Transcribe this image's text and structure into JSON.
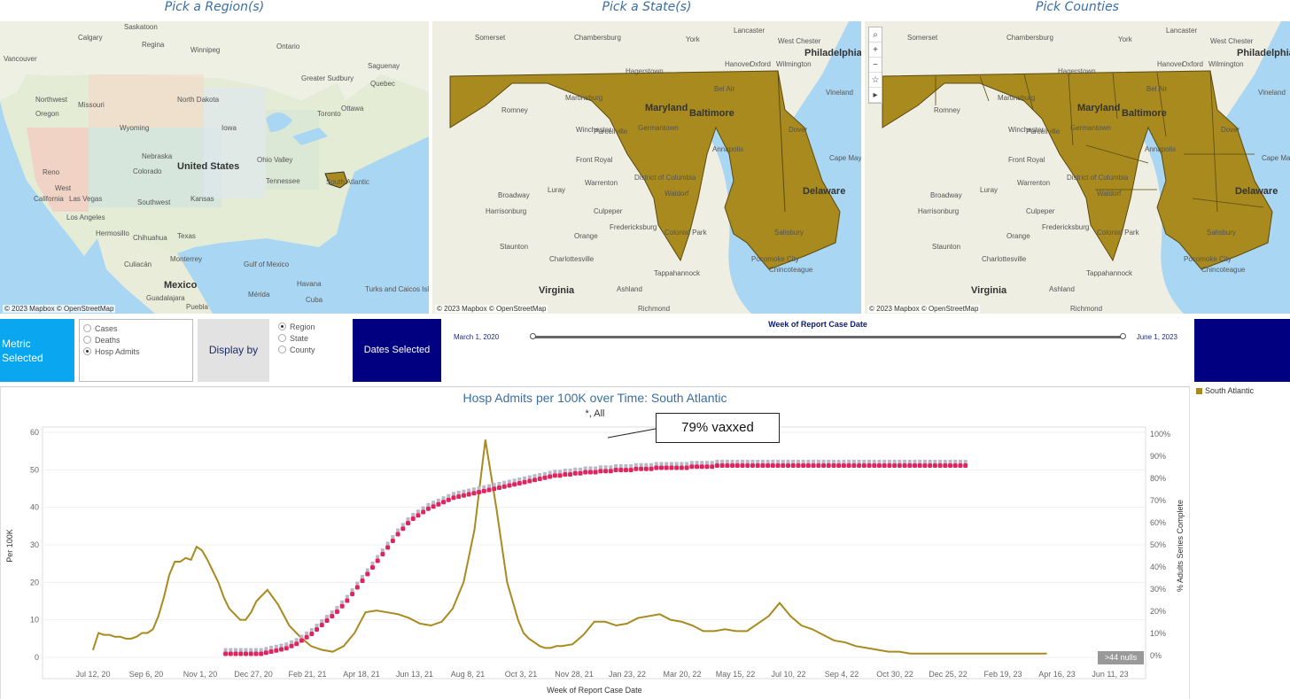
{
  "maps": {
    "region_title": "Pick a Region(s)",
    "state_title": "Pick a State(s)",
    "county_title": "Pick Counties",
    "credit": "© 2023 Mapbox © OpenStreetMap",
    "region_labels": [
      "Saskatoon",
      "Calgary",
      "Regina",
      "Vancouver",
      "Ontario",
      "Saguenay",
      "Winnipeg",
      "Greater Sudbury",
      "Quebec",
      "Toronto",
      "Ottawa",
      "Northwest",
      "North Dakota",
      "Missouri",
      "Oregon",
      "Wyoming",
      "Iowa",
      "United States",
      "Nebraska",
      "Kansas",
      "Ohio Valley",
      "Tennessee",
      "South Atlantic",
      "Reno",
      "West",
      "California",
      "Las Vegas",
      "Los Angeles",
      "Southwest",
      "Colorado",
      "Texas",
      "Hermosillo",
      "Chihuahua",
      "Monterrey",
      "Culiacán",
      "Mexico",
      "Guadalajara",
      "Puebla",
      "Mérida",
      "Gulf of Mexico",
      "Havana",
      "Cuba",
      "Turks and Caicos Islands"
    ],
    "state_labels": [
      "Somerset",
      "Chambersburg",
      "York",
      "Lancaster",
      "West Chester",
      "Philadelphia",
      "Hagerstown",
      "Hanover",
      "Oxford",
      "Wilmington",
      "Romney",
      "Martinsburg",
      "Maryland",
      "Bel Air",
      "Baltimore",
      "Vineland",
      "Winchester",
      "Purcellville",
      "Germantown",
      "Dover",
      "Front Royal",
      "Annapolis",
      "Cape May",
      "Warrenton",
      "District of Columbia",
      "Broadway",
      "Luray",
      "Waldorf",
      "Delaware",
      "Harrisonburg",
      "Culpeper",
      "Salisbury",
      "Fredericksburg",
      "Staunton",
      "Orange",
      "Colonial Park",
      "Charlottesville",
      "Pocomoke City",
      "Chincoteague",
      "Virginia",
      "Tappahannock",
      "Ashland",
      "Richmond"
    ],
    "tools": [
      "⌕",
      "+",
      "−",
      "☆",
      "▸"
    ]
  },
  "controls": {
    "metric_label": "Metric Selected",
    "metric_options": [
      "Cases",
      "Deaths",
      "Hosp Admits"
    ],
    "metric_selected": "Hosp Admits",
    "display_label": "Display by",
    "display_options": [
      "Region",
      "State",
      "County"
    ],
    "display_selected": "Region",
    "dates_label": "Dates Selected",
    "slider_title": "Week of Report Case Date",
    "date_start": "March 1, 2020",
    "date_end": "June 1, 2023"
  },
  "legend": {
    "label": "South Atlantic",
    "color": "#a88a1e"
  },
  "annotation": "79% vaxxed",
  "nulls_badge": ">44 nulls",
  "colors": {
    "hosp_line": "#a88a1e",
    "vax_marker": "#e0245e",
    "map_fill": "#a88a1e"
  },
  "chart_data": {
    "type": "line",
    "title": "Hosp Admits per 100K over Time: South Atlantic",
    "subtitle": "*,  All",
    "xlabel": "Week of Report Case Date",
    "ylabel": "Per 100K",
    "y2label": "% Adults Series Complete",
    "ylim": [
      0,
      60
    ],
    "y2lim": [
      0,
      100
    ],
    "yticks": [
      0,
      10,
      20,
      30,
      40,
      50,
      60
    ],
    "y2ticks": [
      "0%",
      "10%",
      "20%",
      "30%",
      "40%",
      "50%",
      "60%",
      "70%",
      "80%",
      "90%",
      "100%"
    ],
    "xticks": [
      "Jul 12, 20",
      "Sep 6, 20",
      "Nov 1, 20",
      "Dec 27, 20",
      "Feb 21, 21",
      "Apr 18, 21",
      "Jun 13, 21",
      "Aug 8, 21",
      "Oct 3, 21",
      "Nov 28, 21",
      "Jan 23, 22",
      "Mar 20, 22",
      "May 15, 22",
      "Jul 10, 22",
      "Sep 4, 22",
      "Oct 30, 22",
      "Dec 25, 22",
      "Feb 19, 23",
      "Apr 16, 23",
      "Jun 11, 23"
    ],
    "series": [
      {
        "name": "South Atlantic",
        "axis": "left",
        "x_weeks": [
          0,
          1,
          2,
          3,
          4,
          5,
          6,
          7,
          8,
          9,
          10,
          11,
          12,
          13,
          14,
          15,
          16,
          17,
          18,
          19,
          20,
          21,
          22,
          23,
          24,
          25,
          26,
          27,
          28,
          29,
          30,
          32,
          34,
          36,
          38,
          40,
          42,
          44,
          46,
          48,
          50,
          52,
          54,
          56,
          58,
          60,
          62,
          64,
          66,
          68,
          70,
          72,
          74,
          76,
          78,
          79,
          80,
          81,
          82,
          83,
          84,
          85,
          86,
          88,
          90,
          92,
          94,
          96,
          98,
          100,
          102,
          104,
          106,
          108,
          110,
          112,
          114,
          116,
          118,
          120,
          122,
          124,
          126,
          128,
          130,
          132,
          134,
          136,
          138,
          140,
          142,
          144,
          146,
          148,
          150,
          152,
          154,
          156,
          158,
          160,
          162,
          164,
          166,
          168,
          170,
          172,
          174,
          175
        ],
        "values": [
          2,
          6.5,
          6,
          6,
          5.5,
          5.5,
          5,
          5,
          5.5,
          6.5,
          6.5,
          7.5,
          11,
          16,
          22,
          25.5,
          25.5,
          26.5,
          26,
          29.5,
          28.5,
          26,
          23,
          20,
          16,
          13,
          11.5,
          10,
          10,
          12,
          15,
          18,
          14,
          8.5,
          5.5,
          3,
          2,
          1.5,
          3,
          6.5,
          12,
          12.5,
          12,
          11.5,
          10.5,
          9,
          8.5,
          9.5,
          13,
          20,
          34,
          58,
          40,
          20,
          10,
          6.5,
          5,
          4,
          3,
          2.5,
          2.5,
          3,
          3,
          3.5,
          6,
          9.5,
          9.5,
          8.5,
          9,
          10.5,
          11,
          11.5,
          10,
          9.5,
          8.5,
          7,
          7,
          7.5,
          7,
          7,
          9,
          11,
          14.5,
          11,
          8.5,
          7.5,
          6,
          4.5,
          4,
          3,
          2.5,
          2,
          1.5,
          1.5,
          1,
          1,
          1,
          1,
          1,
          1,
          1,
          1,
          1,
          1,
          1,
          1,
          1,
          1
        ]
      },
      {
        "name": "% Adults Series Complete",
        "axis": "right",
        "x_weeks_start": 24,
        "values_pct": [
          1,
          1,
          1,
          1,
          1,
          1,
          1,
          1,
          1.5,
          2,
          2.5,
          3,
          3.5,
          4.5,
          5.5,
          7,
          8.5,
          10,
          12,
          14,
          16,
          18,
          20,
          22.5,
          25,
          28,
          31,
          34,
          37,
          40,
          43,
          46,
          49,
          52,
          55,
          57.5,
          60,
          62,
          63.5,
          65,
          66.5,
          67.5,
          68.5,
          69.5,
          70.5,
          71.5,
          72,
          72.5,
          73,
          73.5,
          74,
          74.5,
          75,
          75.5,
          76,
          76.5,
          77,
          77.5,
          78,
          78.5,
          79,
          79.5,
          80,
          80.5,
          81,
          81.5,
          81.5,
          82,
          82,
          82.5,
          82.5,
          83,
          83,
          83,
          83.5,
          83.5,
          83.5,
          84,
          84,
          84,
          84,
          84.5,
          84.5,
          84.5,
          84.5,
          85,
          85,
          85,
          85,
          85,
          85,
          85,
          85.5,
          85.5,
          85.5,
          85.5,
          85.5,
          86,
          86,
          86,
          86,
          86,
          86,
          86,
          86,
          86,
          86,
          86,
          86,
          86,
          86,
          86,
          86,
          86,
          86,
          86,
          86,
          86,
          86,
          86,
          86,
          86,
          86,
          86,
          86,
          86,
          86,
          86,
          86,
          86,
          86,
          86,
          86,
          86,
          86,
          86,
          86,
          86,
          86,
          86,
          86,
          86,
          86,
          86,
          86,
          86,
          86
        ]
      }
    ]
  }
}
